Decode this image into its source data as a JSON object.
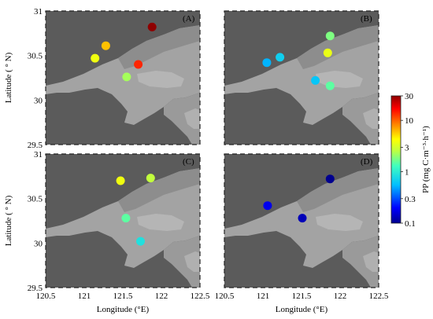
{
  "chart_data": {
    "type": "scatter",
    "xlabel": "Longitude (°E)",
    "ylabel": "Latitude ( ° N)",
    "xlim": [
      120.5,
      122.5
    ],
    "ylim": [
      29.5,
      31.0
    ],
    "xticks": [
      "120.5",
      "121",
      "121.5",
      "122",
      "122.5"
    ],
    "yticks": [
      "29.5",
      "30",
      "30.5",
      "31"
    ],
    "colorbar": {
      "label": "PP (mg C·m⁻³·h⁻¹)",
      "scale": "log",
      "range": [
        0.1,
        30
      ],
      "ticks": [
        "0.1",
        "0.3",
        "1",
        "3",
        "10",
        "30"
      ],
      "tick_values": [
        0.1,
        0.3,
        1,
        3,
        10,
        30
      ],
      "colormap": [
        "#00008f",
        "#0000ff",
        "#00bfff",
        "#40ffbf",
        "#bfff40",
        "#ffff00",
        "#ff8000",
        "#ff0000",
        "#8f0000"
      ]
    },
    "panels": [
      {
        "label": "(A)",
        "points": [
          {
            "lon": 121.88,
            "lat": 30.82,
            "pp": 30
          },
          {
            "lon": 121.28,
            "lat": 30.61,
            "pp": 5
          },
          {
            "lon": 121.14,
            "lat": 30.47,
            "pp": 3
          },
          {
            "lon": 121.7,
            "lat": 30.4,
            "pp": 12
          },
          {
            "lon": 121.55,
            "lat": 30.26,
            "pp": 1.5
          }
        ]
      },
      {
        "label": "(B)",
        "points": [
          {
            "lon": 121.87,
            "lat": 30.72,
            "pp": 1.2
          },
          {
            "lon": 121.84,
            "lat": 30.53,
            "pp": 2.8
          },
          {
            "lon": 121.22,
            "lat": 30.48,
            "pp": 0.5
          },
          {
            "lon": 121.05,
            "lat": 30.42,
            "pp": 0.4
          },
          {
            "lon": 121.68,
            "lat": 30.22,
            "pp": 0.45
          },
          {
            "lon": 121.87,
            "lat": 30.16,
            "pp": 1
          }
        ]
      },
      {
        "label": "(C)",
        "points": [
          {
            "lon": 121.47,
            "lat": 30.7,
            "pp": 3
          },
          {
            "lon": 121.86,
            "lat": 30.73,
            "pp": 1.8
          },
          {
            "lon": 121.54,
            "lat": 30.28,
            "pp": 1
          },
          {
            "lon": 121.73,
            "lat": 30.02,
            "pp": 0.6
          }
        ]
      },
      {
        "label": "(D)",
        "points": [
          {
            "lon": 121.87,
            "lat": 30.72,
            "pp": 0.1
          },
          {
            "lon": 121.06,
            "lat": 30.42,
            "pp": 0.18
          },
          {
            "lon": 121.51,
            "lat": 30.28,
            "pp": 0.13
          }
        ]
      }
    ]
  },
  "colors": {
    "land": "#5b5b5b",
    "water": "#a9a9a9",
    "shelf": "#8e8e8e",
    "frame": "#222222"
  }
}
